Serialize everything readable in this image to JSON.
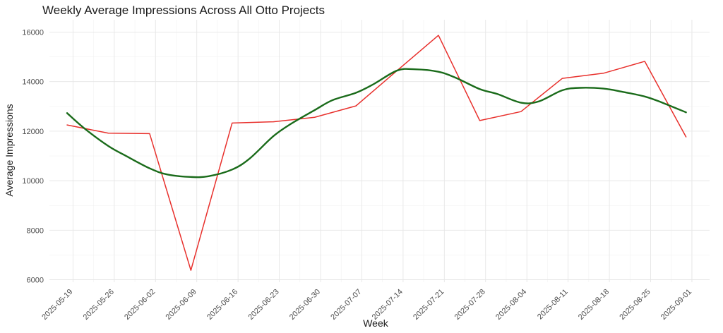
{
  "chart_data": {
    "type": "line",
    "title": "Weekly Average Impressions Across All Otto Projects",
    "xlabel": "Week",
    "ylabel": "Average Impressions",
    "ylim": [
      5900,
      16500
    ],
    "y_ticks": [
      6000,
      8000,
      10000,
      12000,
      14000,
      16000
    ],
    "x_ticks": [
      "2025-05-19",
      "2025-05-26",
      "2025-06-02",
      "2025-06-09",
      "2025-06-16",
      "2025-06-23",
      "2025-06-30",
      "2025-07-07",
      "2025-07-14",
      "2025-07-21",
      "2025-07-28",
      "2025-08-04",
      "2025-08-11",
      "2025-08-18",
      "2025-08-25",
      "2025-09-01"
    ],
    "grid": true,
    "legend": "none",
    "series": [
      {
        "color": "#e8302c",
        "points": [
          {
            "x": "2025-05-18",
            "y": 12250
          },
          {
            "x": "2025-05-25",
            "y": 11920
          },
          {
            "x": "2025-06-01",
            "y": 11900
          },
          {
            "x": "2025-06-08",
            "y": 6380
          },
          {
            "x": "2025-06-15",
            "y": 12330
          },
          {
            "x": "2025-06-22",
            "y": 12380
          },
          {
            "x": "2025-06-29",
            "y": 12560
          },
          {
            "x": "2025-07-06",
            "y": 13020
          },
          {
            "x": "2025-07-13",
            "y": 14450
          },
          {
            "x": "2025-07-20",
            "y": 15870
          },
          {
            "x": "2025-07-27",
            "y": 12430
          },
          {
            "x": "2025-08-03",
            "y": 12790
          },
          {
            "x": "2025-08-10",
            "y": 14130
          },
          {
            "x": "2025-08-17",
            "y": 14340
          },
          {
            "x": "2025-08-24",
            "y": 14820
          },
          {
            "x": "2025-08-31",
            "y": 11770
          }
        ]
      },
      {
        "color": "#1a6b1a",
        "smooth": true,
        "points": [
          {
            "x": "2025-05-18",
            "y": 12730
          },
          {
            "x": "2025-05-21",
            "y": 12100
          },
          {
            "x": "2025-05-25",
            "y": 11400
          },
          {
            "x": "2025-05-28",
            "y": 11000
          },
          {
            "x": "2025-06-01",
            "y": 10500
          },
          {
            "x": "2025-06-04",
            "y": 10250
          },
          {
            "x": "2025-06-08",
            "y": 10150
          },
          {
            "x": "2025-06-11",
            "y": 10180
          },
          {
            "x": "2025-06-15",
            "y": 10450
          },
          {
            "x": "2025-06-18",
            "y": 10900
          },
          {
            "x": "2025-06-22",
            "y": 11800
          },
          {
            "x": "2025-06-25",
            "y": 12300
          },
          {
            "x": "2025-06-29",
            "y": 12850
          },
          {
            "x": "2025-07-02",
            "y": 13250
          },
          {
            "x": "2025-07-06",
            "y": 13550
          },
          {
            "x": "2025-07-09",
            "y": 13900
          },
          {
            "x": "2025-07-13",
            "y": 14450
          },
          {
            "x": "2025-07-16",
            "y": 14500
          },
          {
            "x": "2025-07-20",
            "y": 14400
          },
          {
            "x": "2025-07-23",
            "y": 14150
          },
          {
            "x": "2025-07-27",
            "y": 13700
          },
          {
            "x": "2025-07-30",
            "y": 13500
          },
          {
            "x": "2025-08-03",
            "y": 13150
          },
          {
            "x": "2025-08-06",
            "y": 13200
          },
          {
            "x": "2025-08-10",
            "y": 13650
          },
          {
            "x": "2025-08-13",
            "y": 13750
          },
          {
            "x": "2025-08-17",
            "y": 13720
          },
          {
            "x": "2025-08-20",
            "y": 13600
          },
          {
            "x": "2025-08-24",
            "y": 13400
          },
          {
            "x": "2025-08-27",
            "y": 13150
          },
          {
            "x": "2025-08-31",
            "y": 12760
          }
        ]
      }
    ]
  }
}
